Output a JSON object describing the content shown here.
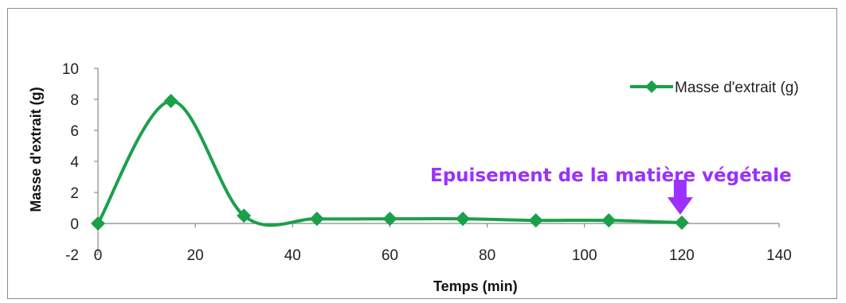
{
  "chart_data": {
    "type": "line",
    "x": [
      0,
      15,
      30,
      45,
      60,
      75,
      90,
      105,
      120
    ],
    "series": [
      {
        "name": "Masse d'extrait (g)",
        "values": [
          0,
          7.9,
          0.5,
          0.3,
          0.3,
          0.3,
          0.2,
          0.2,
          0.05
        ],
        "color": "#1aa04a"
      }
    ],
    "xlabel": "Temps (min)",
    "ylabel": "Masse d'extrait (g)",
    "xlim": [
      0,
      140
    ],
    "ylim": [
      -2,
      10
    ],
    "xticks": [
      "0",
      "20",
      "40",
      "60",
      "80",
      "100",
      "120",
      "140"
    ],
    "yticks": [
      "-2",
      "0",
      "2",
      "4",
      "6",
      "8",
      "10"
    ],
    "grid": false,
    "legend_position": "top-right",
    "smooth": true,
    "marker": "diamond",
    "annotation": {
      "text": "Epuisement de la matière végétale",
      "color": "#9b30ff",
      "arrow_x": 120
    }
  }
}
